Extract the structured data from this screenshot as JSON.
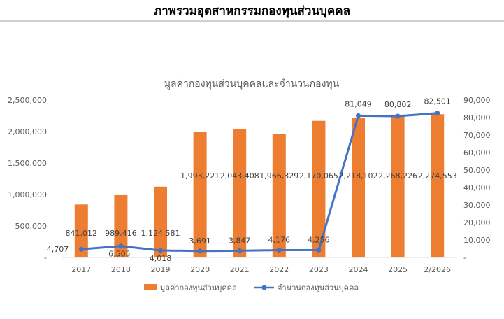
{
  "page": {
    "banner_title": "ภาพรวมอุตสาหกรรมกองทุนส่วนบุคคล"
  },
  "chart_data": {
    "type": "bar",
    "title": "มูลค่ากองทุนส่วนบุคคลและจำนวนกองทุน",
    "categories": [
      "2017",
      "2018",
      "2019",
      "2020",
      "2021",
      "2022",
      "2023",
      "2024",
      "2025",
      "2/2026"
    ],
    "series": [
      {
        "name": "มูลค่ากองทุนส่วนบุคคล",
        "type": "bar",
        "axis": "left",
        "color": "#ED7D31",
        "values": [
          841012,
          989416,
          1124581,
          1993221,
          2043408,
          1966329,
          2170065,
          2218102,
          2268226,
          2274553
        ],
        "labels": [
          "841,012",
          "989,416",
          "1,124,581",
          "1,993,221",
          "2,043,408",
          "1,966,329",
          "2,170,065",
          "2,218,102",
          "2,268,226",
          "2,274,553"
        ]
      },
      {
        "name": "จำนวนกองทุนส่วนบุคคล",
        "type": "line",
        "axis": "right",
        "color": "#4472C4",
        "values": [
          4707,
          6505,
          4018,
          3691,
          3847,
          4176,
          4256,
          81049,
          80802,
          82501
        ],
        "labels": [
          "4,707",
          "6,505",
          "4,018",
          "3,691",
          "3,847",
          "4,176",
          "4,256",
          "81,049",
          "80,802",
          "82,501"
        ]
      }
    ],
    "y_left": {
      "ylim": [
        0,
        2500000
      ],
      "ticks": [
        0,
        500000,
        1000000,
        1500000,
        2000000,
        2500000
      ],
      "tick_labels": [
        "-",
        "500,000",
        "1,000,000",
        "1,500,000",
        "2,000,000",
        "2,500,000"
      ]
    },
    "y_right": {
      "ylim": [
        0,
        90000
      ],
      "ticks": [
        0,
        10000,
        20000,
        30000,
        40000,
        50000,
        60000,
        70000,
        80000,
        90000
      ],
      "tick_labels": [
        "-",
        "10,000",
        "20,000",
        "30,000",
        "40,000",
        "50,000",
        "60,000",
        "70,000",
        "80,000",
        "90,000"
      ]
    },
    "legend_position": "bottom",
    "grid": false
  }
}
